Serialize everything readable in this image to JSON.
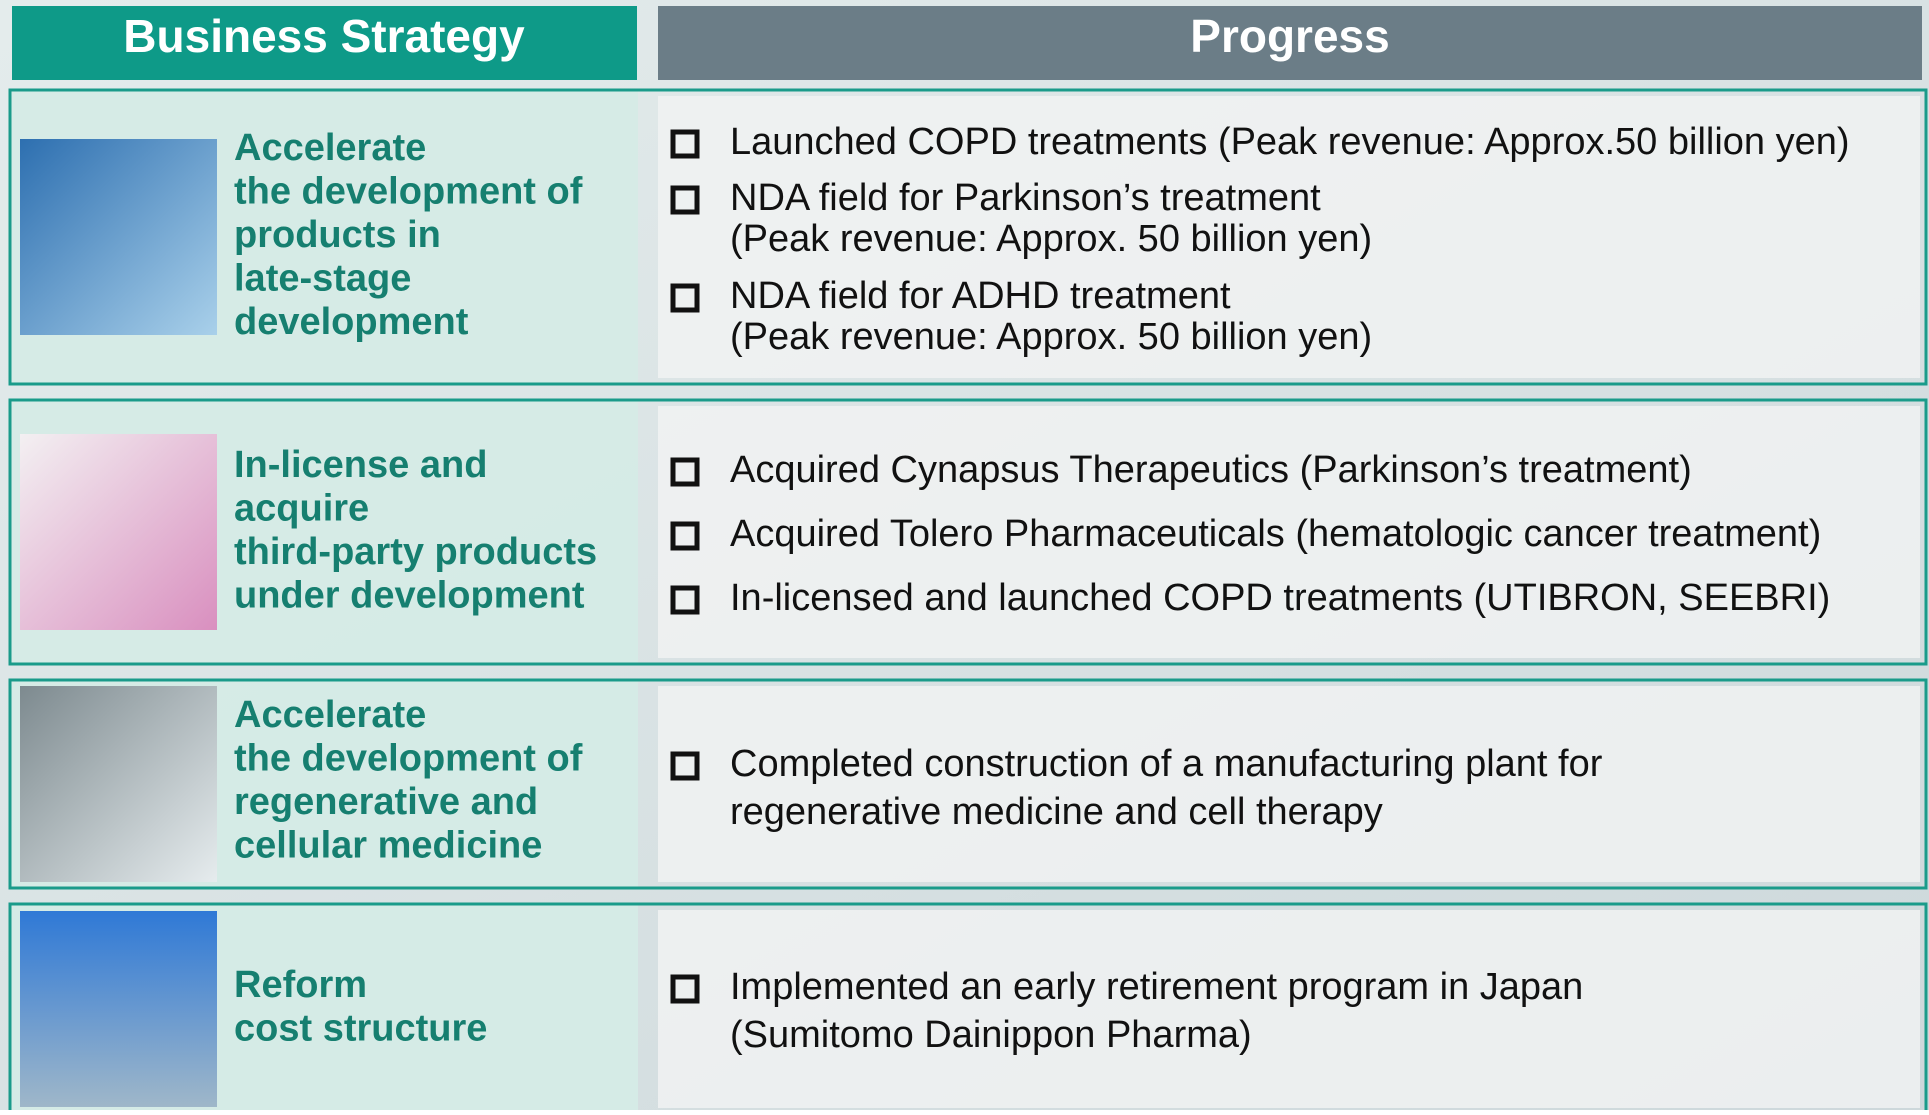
{
  "header": {
    "strategy": "Business Strategy",
    "progress": "Progress"
  },
  "rows": [
    {
      "strategy": [
        "Accelerate",
        "the development of",
        "products in",
        "late-stage",
        "development"
      ],
      "progress": [
        [
          "Launched COPD treatments (Peak revenue: Approx.50 billion yen)"
        ],
        [
          "NDA field for Parkinson’s treatment",
          "(Peak revenue: Approx. 50 billion yen)"
        ],
        [
          "NDA field for ADHD treatment",
          "(Peak revenue: Approx. 50 billion yen)"
        ]
      ]
    },
    {
      "strategy": [
        "In-license and",
        "acquire",
        "third-party products",
        "under development"
      ],
      "progress": [
        [
          "Acquired Cynapsus Therapeutics (Parkinson’s treatment)"
        ],
        [
          "Acquired Tolero Pharmaceuticals (hematologic cancer treatment)"
        ],
        [
          "In-licensed and launched COPD treatments (UTIBRON, SEEBRI)"
        ]
      ]
    },
    {
      "strategy": [
        "Accelerate",
        "the development of",
        "regenerative and",
        "cellular medicine"
      ],
      "progress": [
        [
          "Completed construction of a manufacturing plant for",
          "regenerative medicine and cell therapy"
        ]
      ]
    },
    {
      "strategy": [
        "Reform",
        "cost structure"
      ],
      "progress": [
        [
          "Implemented an early retirement program in Japan",
          "(Sumitomo Dainippon Pharma)"
        ]
      ]
    }
  ]
}
